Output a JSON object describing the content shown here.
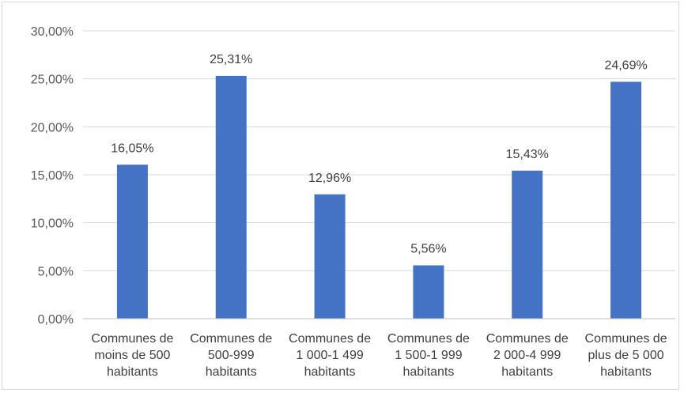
{
  "chart_data": {
    "type": "bar",
    "title": "",
    "xlabel": "",
    "ylabel": "",
    "categories": [
      [
        "Communes de",
        "moins de 500",
        "habitants"
      ],
      [
        "Communes de",
        "500-999",
        "habitants"
      ],
      [
        "Communes de",
        "1 000-1 499",
        "habitants"
      ],
      [
        "Communes de",
        "1 500-1 999",
        "habitants"
      ],
      [
        "Communes de",
        "2 000-4 999",
        "habitants"
      ],
      [
        "Communes de",
        "plus de 5 000",
        "habitants"
      ]
    ],
    "values": [
      16.05,
      25.31,
      12.96,
      5.56,
      15.43,
      24.69
    ],
    "data_labels": [
      "16,05%",
      "25,31%",
      "12,96%",
      "5,56%",
      "15,43%",
      "24,69%"
    ],
    "ylim": [
      0,
      30
    ],
    "yticks": [
      0,
      5,
      10,
      15,
      20,
      25,
      30
    ],
    "ytick_labels": [
      "0,00%",
      "5,00%",
      "10,00%",
      "15,00%",
      "20,00%",
      "25,00%",
      "30,00%"
    ],
    "grid": true,
    "legend": "none",
    "colors": {
      "bar": "#4472c4",
      "grid": "#d9d9d9",
      "axis": "#bfbfbf"
    }
  }
}
